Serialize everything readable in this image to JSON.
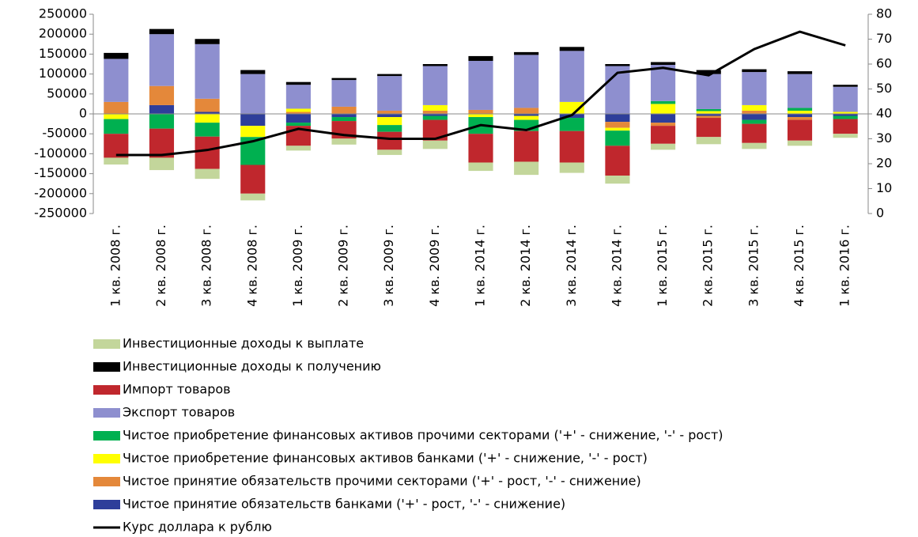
{
  "chart_data": {
    "type": "bar",
    "stacked": true,
    "categories": [
      "1 кв. 2008 г.",
      "2 кв. 2008 г.",
      "3 кв. 2008 г.",
      "4 кв. 2008 г.",
      "1 кв. 2009 г.",
      "2 кв. 2009 г.",
      "3 кв. 2009 г.",
      "4 кв. 2009 г.",
      "1 кв. 2014 г.",
      "2 кв. 2014 г.",
      "3 кв. 2014 г.",
      "4 кв. 2014 г.",
      "1 кв. 2015 г.",
      "2 кв. 2015 г.",
      "3 кв. 2015 г.",
      "4 кв. 2015 г.",
      "1 кв. 2016 г."
    ],
    "series": [
      {
        "name": "Инвестиционные доходы к выплате",
        "color": "#c3d69b",
        "values": [
          -17000,
          -31000,
          -25000,
          -17000,
          -12000,
          -15000,
          -13000,
          -21000,
          -21000,
          -33000,
          -26000,
          -20000,
          -15000,
          -18000,
          -15000,
          -13000,
          -10000
        ]
      },
      {
        "name": "Инвестиционные доходы к получению",
        "color": "#000000",
        "values": [
          15000,
          13000,
          13000,
          10000,
          7000,
          5000,
          5000,
          5000,
          12000,
          7000,
          10000,
          5000,
          7000,
          10000,
          7000,
          7000,
          5000
        ]
      },
      {
        "name": "Импорт товаров",
        "color": "#c0272d",
        "values": [
          -60000,
          -73000,
          -81000,
          -72000,
          -50000,
          -44000,
          -45000,
          -52000,
          -72000,
          -77000,
          -79000,
          -75000,
          -45000,
          -48000,
          -48000,
          -52000,
          -37000
        ]
      },
      {
        "name": "Экспорт товаров",
        "color": "#8e8fcf",
        "values": [
          108000,
          130000,
          137000,
          100000,
          60000,
          67000,
          87000,
          98000,
          123000,
          133000,
          128000,
          120000,
          91000,
          88000,
          83000,
          85000,
          63000
        ]
      },
      {
        "name": "Чистое приобретение финансовых активов прочими секторами ('+' - снижение, '-' - рост)",
        "color": "#00b050",
        "values": [
          -37000,
          -37000,
          -35000,
          -70000,
          -8000,
          -10000,
          -17000,
          -10000,
          -42000,
          -28000,
          -33000,
          -38000,
          7000,
          5000,
          -10000,
          7000,
          -8000
        ]
      },
      {
        "name": "Чистое приобретение финансовых активов банками ('+' - снижение, '-' - рост)",
        "color": "#ffff00",
        "values": [
          -13000,
          0,
          -22000,
          -28000,
          8000,
          0,
          -20000,
          14000,
          -8000,
          -10000,
          30000,
          -7000,
          25000,
          7000,
          14000,
          8000,
          5000
        ]
      },
      {
        "name": "Чистое принятие обязательств прочими секторами ('+' - рост, '-' - снижение)",
        "color": "#e4883a",
        "values": [
          30000,
          48000,
          33000,
          0,
          5000,
          18000,
          8000,
          8000,
          10000,
          15000,
          0,
          -15000,
          -8000,
          -5000,
          8000,
          -7000,
          0
        ]
      },
      {
        "name": "Чистое принятие обязательств банками ('+' - рост, '-' - снижение)",
        "color": "#2e3e9a",
        "values": [
          0,
          22000,
          5000,
          -30000,
          -22000,
          -8000,
          -8000,
          -5000,
          0,
          -5000,
          -10000,
          -20000,
          -22000,
          -5000,
          -15000,
          -8000,
          -5000
        ]
      },
      {
        "name": "Курс доллара к рублю",
        "type": "line",
        "axis": "y2",
        "color": "#000000",
        "values": [
          23.5,
          23.5,
          25.5,
          29,
          34,
          31.5,
          30,
          30,
          35.5,
          33.5,
          39.5,
          56.5,
          58.5,
          55.5,
          66,
          73,
          67.5
        ]
      }
    ],
    "ylim": [
      -250000,
      250000
    ],
    "yticks": [
      -250000,
      -200000,
      -150000,
      -100000,
      -50000,
      0,
      50000,
      100000,
      150000,
      200000,
      250000
    ],
    "y2lim": [
      0,
      80
    ],
    "y2ticks": [
      0,
      10,
      20,
      30,
      40,
      50,
      60,
      70,
      80
    ],
    "grid": false,
    "legend": "bottom"
  }
}
